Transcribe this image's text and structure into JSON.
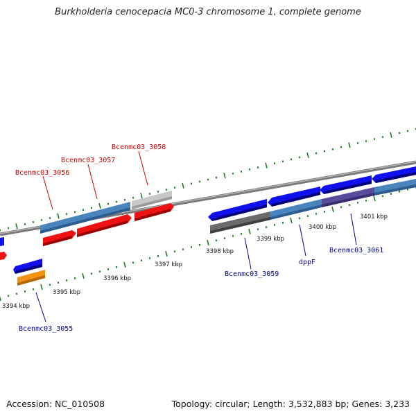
{
  "title": "Burkholderia cenocepacia MC0-3 chromosome 1, complete genome",
  "footer": {
    "accession": "Accession: NC_010508",
    "topology": "Topology: circular; Length: 3,532,883 bp; Genes: 3,233"
  },
  "ticks": [
    "3394 kbp",
    "3395 kbp",
    "3396 kbp",
    "3397 kbp",
    "3398 kbp",
    "3399 kbp",
    "3400 kbp",
    "3401 kbp"
  ],
  "gene_labels": {
    "top": [
      "Bcenmc03_3056",
      "Bcenmc03_3057",
      "Bcenmc03_3058"
    ],
    "bottom": [
      "Bcenmc03_3055",
      "Bcenmc03_3059",
      "dppF",
      "Bcenmc03_3061"
    ]
  },
  "colors": {
    "cds": "#1010ee",
    "cds_reverse": "#ee1111",
    "gene_steelblue": "#4a84bd",
    "gene_gray": "#6b6b6b",
    "gene_lightgray": "#c8c8c8",
    "gene_orange": "#f39312",
    "gene_purple": "#5a4a9a",
    "tick_green": "#1f7a1f"
  }
}
